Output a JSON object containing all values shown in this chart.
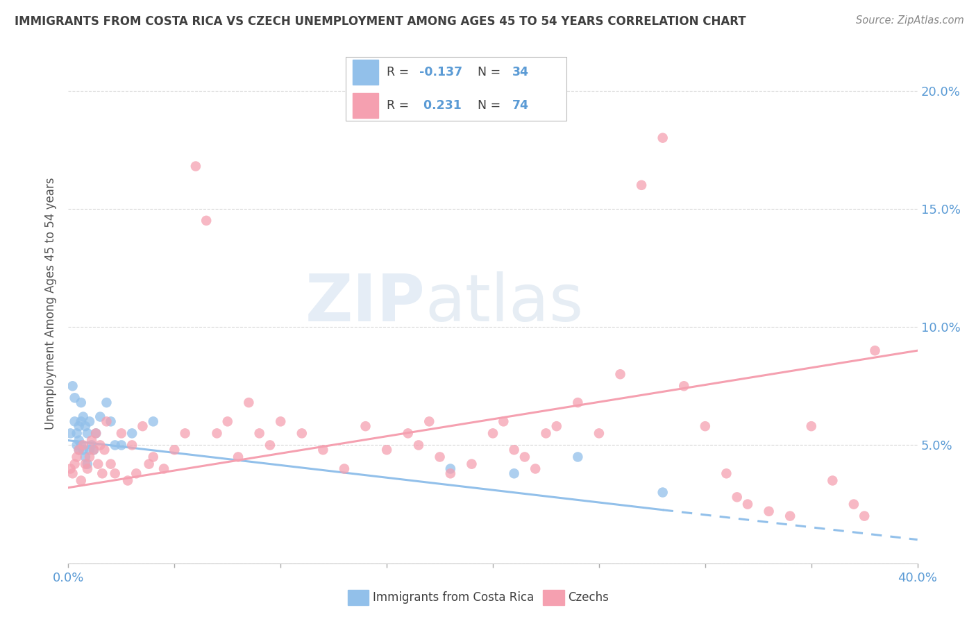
{
  "title": "IMMIGRANTS FROM COSTA RICA VS CZECH UNEMPLOYMENT AMONG AGES 45 TO 54 YEARS CORRELATION CHART",
  "source": "Source: ZipAtlas.com",
  "ylabel": "Unemployment Among Ages 45 to 54 years",
  "xlim": [
    0.0,
    0.4
  ],
  "ylim": [
    0.0,
    0.22
  ],
  "xticks": [
    0.0,
    0.05,
    0.1,
    0.15,
    0.2,
    0.25,
    0.3,
    0.35,
    0.4
  ],
  "xticklabels": [
    "0.0%",
    "",
    "",
    "",
    "",
    "",
    "",
    "",
    "40.0%"
  ],
  "yticks": [
    0.0,
    0.05,
    0.1,
    0.15,
    0.2
  ],
  "yticklabels": [
    "",
    "5.0%",
    "10.0%",
    "15.0%",
    "20.0%"
  ],
  "series1_label": "Immigrants from Costa Rica",
  "series1_R": "-0.137",
  "series1_N": "34",
  "series1_color": "#92C0EA",
  "series2_label": "Czechs",
  "series2_R": "0.231",
  "series2_N": "74",
  "series2_color": "#F5A0B0",
  "watermark_ZIP": "ZIP",
  "watermark_atlas": "atlas",
  "background_color": "#ffffff",
  "grid_color": "#cccccc",
  "title_color": "#404040",
  "axis_color": "#5b9bd5",
  "legend_text_color": "#404040",
  "series1_x": [
    0.001,
    0.002,
    0.003,
    0.003,
    0.004,
    0.004,
    0.005,
    0.005,
    0.005,
    0.006,
    0.006,
    0.006,
    0.007,
    0.007,
    0.008,
    0.008,
    0.009,
    0.009,
    0.01,
    0.01,
    0.011,
    0.012,
    0.013,
    0.015,
    0.018,
    0.02,
    0.022,
    0.025,
    0.03,
    0.04,
    0.18,
    0.21,
    0.24,
    0.28
  ],
  "series1_y": [
    0.055,
    0.075,
    0.07,
    0.06,
    0.055,
    0.05,
    0.058,
    0.052,
    0.048,
    0.068,
    0.06,
    0.05,
    0.062,
    0.048,
    0.058,
    0.045,
    0.055,
    0.042,
    0.06,
    0.048,
    0.05,
    0.048,
    0.055,
    0.062,
    0.068,
    0.06,
    0.05,
    0.05,
    0.055,
    0.06,
    0.04,
    0.038,
    0.045,
    0.03
  ],
  "series2_x": [
    0.001,
    0.002,
    0.003,
    0.004,
    0.005,
    0.006,
    0.007,
    0.008,
    0.009,
    0.01,
    0.011,
    0.012,
    0.013,
    0.014,
    0.015,
    0.016,
    0.017,
    0.018,
    0.02,
    0.022,
    0.025,
    0.028,
    0.03,
    0.032,
    0.035,
    0.038,
    0.04,
    0.045,
    0.05,
    0.055,
    0.06,
    0.065,
    0.07,
    0.075,
    0.08,
    0.085,
    0.09,
    0.095,
    0.1,
    0.11,
    0.12,
    0.13,
    0.14,
    0.15,
    0.16,
    0.165,
    0.17,
    0.175,
    0.18,
    0.19,
    0.2,
    0.205,
    0.21,
    0.215,
    0.22,
    0.225,
    0.23,
    0.24,
    0.25,
    0.26,
    0.27,
    0.28,
    0.29,
    0.3,
    0.31,
    0.315,
    0.32,
    0.33,
    0.34,
    0.35,
    0.36,
    0.37,
    0.375,
    0.38
  ],
  "series2_y": [
    0.04,
    0.038,
    0.042,
    0.045,
    0.048,
    0.035,
    0.05,
    0.042,
    0.04,
    0.045,
    0.052,
    0.048,
    0.055,
    0.042,
    0.05,
    0.038,
    0.048,
    0.06,
    0.042,
    0.038,
    0.055,
    0.035,
    0.05,
    0.038,
    0.058,
    0.042,
    0.045,
    0.04,
    0.048,
    0.055,
    0.168,
    0.145,
    0.055,
    0.06,
    0.045,
    0.068,
    0.055,
    0.05,
    0.06,
    0.055,
    0.048,
    0.04,
    0.058,
    0.048,
    0.055,
    0.05,
    0.06,
    0.045,
    0.038,
    0.042,
    0.055,
    0.06,
    0.048,
    0.045,
    0.04,
    0.055,
    0.058,
    0.068,
    0.055,
    0.08,
    0.16,
    0.18,
    0.075,
    0.058,
    0.038,
    0.028,
    0.025,
    0.022,
    0.02,
    0.058,
    0.035,
    0.025,
    0.02,
    0.09
  ],
  "trend1_start_x": 0.0,
  "trend1_end_x": 0.4,
  "trend2_start_x": 0.0,
  "trend2_end_x": 0.4,
  "trend1_y_at_0": 0.052,
  "trend1_y_at_40": 0.01,
  "trend2_y_at_0": 0.032,
  "trend2_y_at_40": 0.09
}
